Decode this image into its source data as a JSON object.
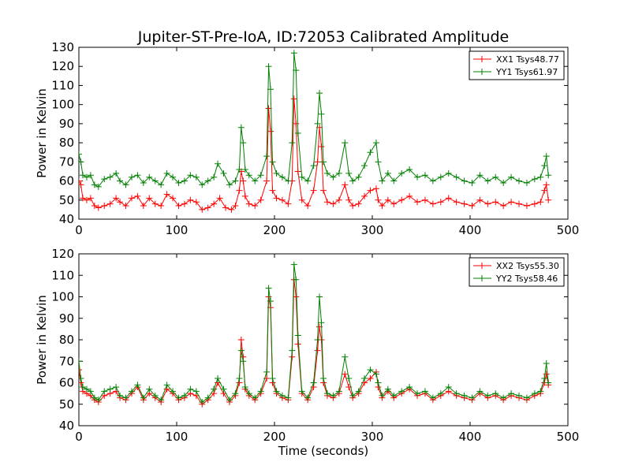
{
  "title": "Jupiter-ST-Pre-IoA, ID:72053 Calibrated Amplitude",
  "colors": {
    "xx": "#ff0000",
    "yy": "#008000"
  },
  "chart_data": [
    {
      "type": "line",
      "title": "",
      "xlabel": "",
      "ylabel": "Power in Kelvin",
      "xlim": [
        0,
        500
      ],
      "ylim": [
        40,
        130
      ],
      "xticks": [
        0,
        100,
        200,
        300,
        400,
        500
      ],
      "yticks": [
        40,
        50,
        60,
        70,
        80,
        90,
        100,
        110,
        120,
        130
      ],
      "grid": false,
      "legend_position": "top-right",
      "marker": "+",
      "series": [
        {
          "name": "XX1 Tsys48.77",
          "color": "#ff0000",
          "x": [
            0,
            2,
            4,
            8,
            12,
            16,
            20,
            26,
            32,
            38,
            42,
            48,
            54,
            60,
            66,
            72,
            78,
            84,
            90,
            96,
            102,
            108,
            114,
            120,
            126,
            132,
            138,
            144,
            150,
            156,
            160,
            164,
            166,
            168,
            170,
            174,
            180,
            186,
            192,
            194,
            196,
            198,
            202,
            208,
            214,
            218,
            220,
            222,
            224,
            228,
            234,
            240,
            244,
            246,
            248,
            250,
            254,
            260,
            266,
            272,
            276,
            280,
            286,
            292,
            298,
            304,
            306,
            310,
            316,
            322,
            330,
            338,
            346,
            354,
            362,
            370,
            378,
            386,
            394,
            402,
            410,
            418,
            426,
            434,
            442,
            450,
            458,
            466,
            472,
            476,
            478,
            480
          ],
          "y": [
            60,
            58,
            51,
            50,
            51,
            47,
            46,
            47,
            48,
            51,
            49,
            47,
            51,
            52,
            47,
            51,
            48,
            47,
            53,
            51,
            47,
            48,
            50,
            49,
            45,
            46,
            48,
            51,
            46,
            45,
            47,
            55,
            65,
            60,
            52,
            48,
            47,
            50,
            60,
            98,
            86,
            55,
            51,
            50,
            48,
            60,
            103,
            90,
            65,
            50,
            47,
            55,
            70,
            88,
            78,
            55,
            49,
            48,
            50,
            58,
            50,
            47,
            48,
            52,
            55,
            56,
            50,
            47,
            50,
            48,
            50,
            52,
            49,
            50,
            48,
            49,
            51,
            49,
            48,
            47,
            50,
            48,
            49,
            47,
            49,
            48,
            47,
            48,
            49,
            55,
            58,
            50
          ]
        },
        {
          "name": "YY1 Tsys61.97",
          "color": "#008000",
          "x": [
            0,
            2,
            4,
            8,
            12,
            16,
            20,
            26,
            32,
            38,
            42,
            48,
            54,
            60,
            66,
            72,
            78,
            84,
            90,
            96,
            102,
            108,
            114,
            120,
            126,
            132,
            138,
            142,
            148,
            154,
            160,
            164,
            166,
            168,
            170,
            174,
            180,
            186,
            192,
            194,
            196,
            198,
            202,
            208,
            214,
            218,
            220,
            222,
            224,
            228,
            234,
            240,
            244,
            246,
            248,
            250,
            254,
            260,
            266,
            272,
            276,
            280,
            286,
            292,
            298,
            304,
            306,
            310,
            316,
            322,
            330,
            338,
            346,
            354,
            362,
            370,
            378,
            386,
            394,
            402,
            410,
            418,
            426,
            434,
            442,
            450,
            458,
            466,
            472,
            476,
            478,
            480
          ],
          "y": [
            74,
            70,
            63,
            62,
            63,
            58,
            57,
            61,
            62,
            64,
            60,
            58,
            62,
            63,
            59,
            62,
            60,
            58,
            64,
            62,
            59,
            60,
            63,
            62,
            58,
            60,
            62,
            69,
            64,
            58,
            60,
            66,
            88,
            80,
            66,
            63,
            60,
            63,
            73,
            120,
            108,
            70,
            64,
            62,
            60,
            80,
            127,
            118,
            85,
            62,
            60,
            68,
            90,
            106,
            95,
            70,
            64,
            62,
            64,
            80,
            64,
            60,
            62,
            68,
            75,
            80,
            70,
            60,
            64,
            60,
            64,
            66,
            62,
            63,
            60,
            62,
            64,
            62,
            60,
            59,
            63,
            60,
            62,
            59,
            62,
            60,
            59,
            61,
            62,
            68,
            73,
            63
          ]
        }
      ]
    },
    {
      "type": "line",
      "title": "",
      "xlabel": "Time (seconds)",
      "ylabel": "Power in Kelvin",
      "xlim": [
        0,
        500
      ],
      "ylim": [
        40,
        120
      ],
      "xticks": [
        0,
        100,
        200,
        300,
        400,
        500
      ],
      "yticks": [
        40,
        50,
        60,
        70,
        80,
        90,
        100,
        110,
        120
      ],
      "grid": false,
      "legend_position": "top-right",
      "marker": "+",
      "series": [
        {
          "name": "XX2 Tsys55.30",
          "color": "#ff0000",
          "x": [
            0,
            2,
            4,
            8,
            12,
            16,
            20,
            26,
            32,
            38,
            42,
            48,
            54,
            60,
            66,
            72,
            78,
            84,
            90,
            96,
            102,
            108,
            114,
            120,
            126,
            132,
            138,
            142,
            148,
            154,
            160,
            164,
            166,
            168,
            170,
            174,
            180,
            186,
            192,
            194,
            196,
            198,
            202,
            208,
            214,
            218,
            220,
            222,
            224,
            228,
            234,
            240,
            244,
            246,
            248,
            250,
            254,
            260,
            266,
            272,
            276,
            280,
            286,
            292,
            298,
            304,
            306,
            310,
            316,
            322,
            330,
            338,
            346,
            354,
            362,
            370,
            378,
            386,
            394,
            402,
            410,
            418,
            426,
            434,
            442,
            450,
            458,
            466,
            472,
            476,
            478,
            480
          ],
          "y": [
            66,
            60,
            56,
            55,
            54,
            52,
            51,
            54,
            55,
            56,
            53,
            52,
            55,
            58,
            52,
            55,
            53,
            51,
            57,
            55,
            52,
            53,
            55,
            54,
            50,
            52,
            55,
            60,
            55,
            51,
            54,
            60,
            80,
            72,
            57,
            54,
            52,
            55,
            62,
            100,
            95,
            60,
            55,
            53,
            52,
            72,
            108,
            100,
            78,
            55,
            52,
            58,
            75,
            86,
            80,
            60,
            54,
            53,
            55,
            64,
            58,
            53,
            55,
            60,
            62,
            65,
            58,
            53,
            56,
            53,
            55,
            57,
            54,
            55,
            52,
            54,
            56,
            54,
            53,
            52,
            55,
            53,
            54,
            52,
            54,
            53,
            52,
            54,
            55,
            60,
            64,
            59
          ]
        },
        {
          "name": "YY2 Tsys58.46",
          "color": "#008000",
          "x": [
            0,
            2,
            4,
            8,
            12,
            16,
            20,
            26,
            32,
            38,
            42,
            48,
            54,
            60,
            66,
            72,
            78,
            84,
            90,
            96,
            102,
            108,
            114,
            120,
            126,
            132,
            138,
            142,
            148,
            154,
            160,
            164,
            166,
            168,
            170,
            174,
            180,
            186,
            192,
            194,
            196,
            198,
            202,
            208,
            214,
            218,
            220,
            222,
            224,
            228,
            234,
            240,
            244,
            246,
            248,
            250,
            254,
            260,
            266,
            272,
            276,
            280,
            286,
            292,
            298,
            304,
            306,
            310,
            316,
            322,
            330,
            338,
            346,
            354,
            362,
            370,
            378,
            386,
            394,
            402,
            410,
            418,
            426,
            434,
            442,
            450,
            458,
            466,
            472,
            476,
            478,
            480
          ],
          "y": [
            70,
            62,
            58,
            57,
            56,
            53,
            52,
            56,
            57,
            58,
            54,
            53,
            56,
            59,
            53,
            57,
            54,
            52,
            59,
            56,
            53,
            54,
            57,
            56,
            51,
            53,
            57,
            62,
            57,
            52,
            55,
            62,
            75,
            70,
            58,
            55,
            53,
            56,
            65,
            104,
            98,
            62,
            56,
            54,
            53,
            75,
            115,
            108,
            82,
            56,
            53,
            60,
            80,
            100,
            88,
            62,
            55,
            54,
            56,
            72,
            62,
            54,
            56,
            62,
            66,
            64,
            60,
            54,
            57,
            54,
            56,
            58,
            55,
            56,
            53,
            55,
            58,
            55,
            54,
            53,
            56,
            54,
            55,
            53,
            55,
            54,
            53,
            55,
            56,
            62,
            69,
            60
          ]
        }
      ]
    }
  ]
}
